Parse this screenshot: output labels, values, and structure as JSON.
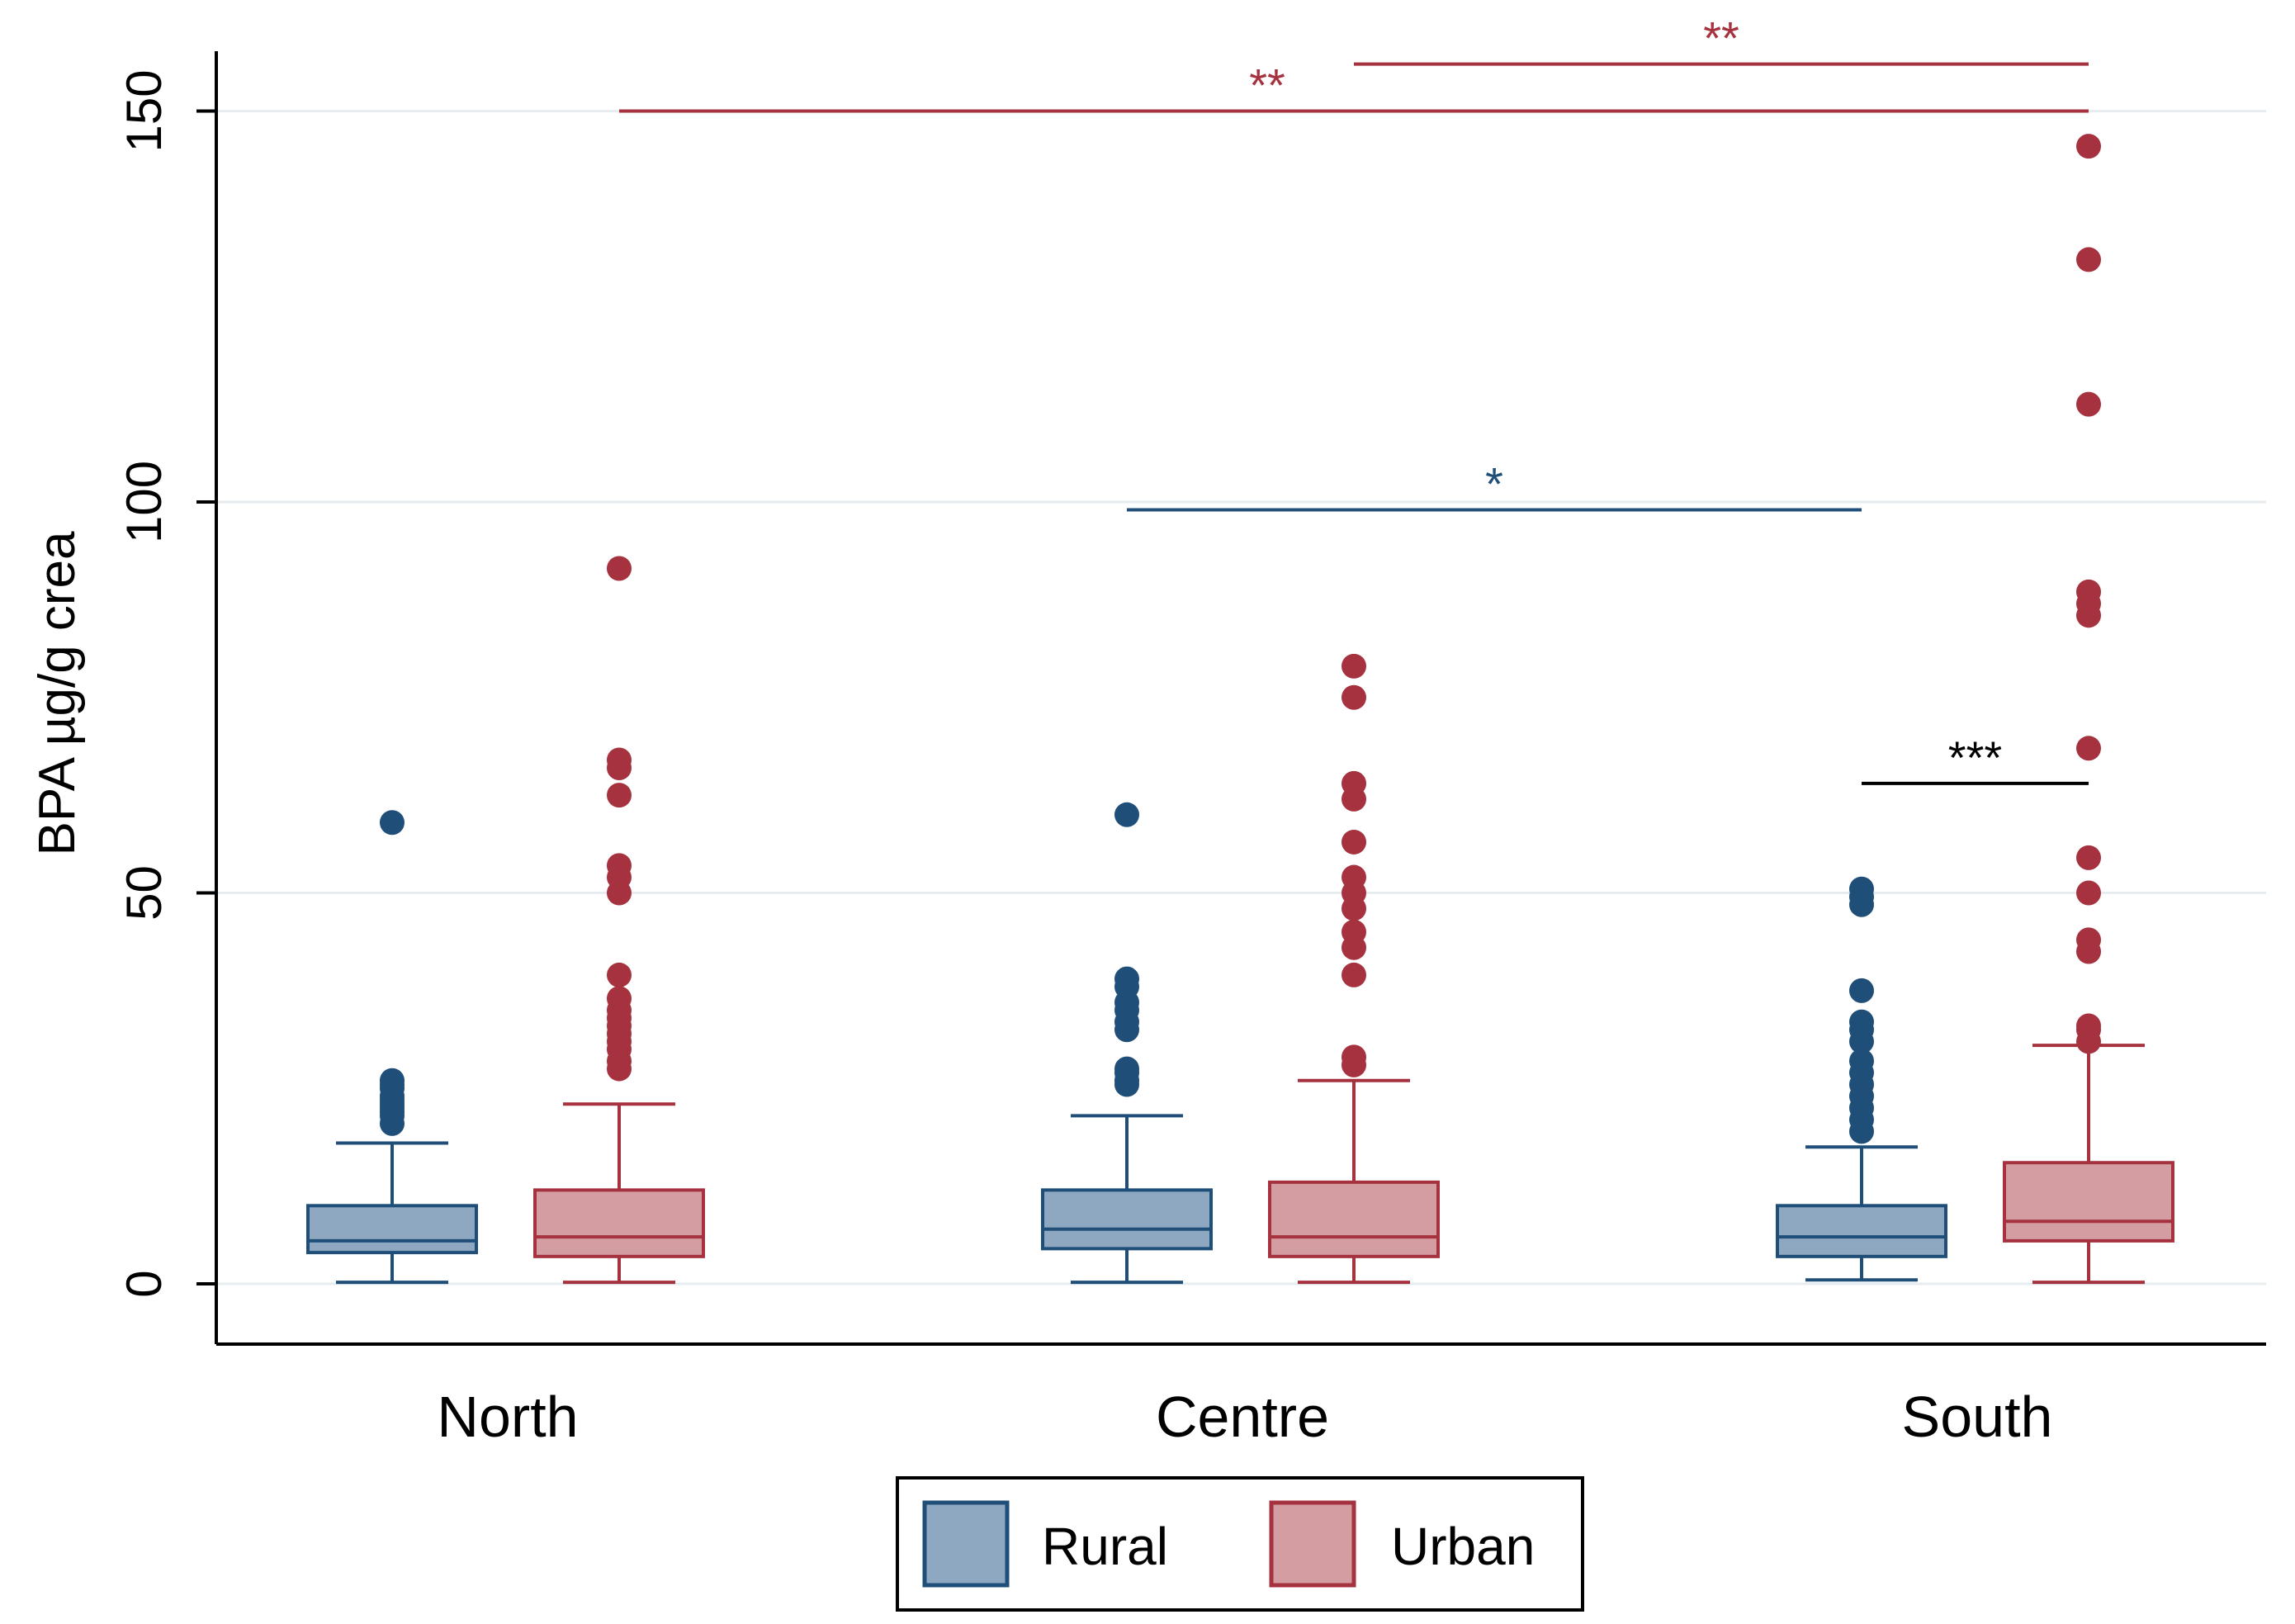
{
  "chart_data": {
    "type": "box",
    "title": "",
    "xlabel": "",
    "ylabel": "BPA  µg/g crea",
    "ylim": [
      -12,
      158
    ],
    "yticks": [
      0,
      50,
      100,
      150
    ],
    "ytick_labels": [
      "0",
      "50",
      "100",
      "150"
    ],
    "grid": true,
    "categories": [
      "North",
      "Centre",
      "South"
    ],
    "series": [
      {
        "name": "Rural",
        "color": "#1f4e79",
        "fill": "#8fa8c2",
        "boxes": [
          {
            "category": "North",
            "whisker_low": 0.2,
            "q1": 4.0,
            "median": 5.5,
            "q3": 10.0,
            "whisker_high": 18.0,
            "outliers": [
              20.5,
              21.5,
              22.0,
              22.5,
              23.0,
              23.5,
              24.0,
              25.0,
              25.5,
              26.0,
              59.0
            ]
          },
          {
            "category": "Centre",
            "whisker_low": 0.2,
            "q1": 4.5,
            "median": 7.0,
            "q3": 12.0,
            "whisker_high": 21.5,
            "outliers": [
              25.5,
              26.0,
              27.0,
              27.5,
              32.5,
              33.5,
              35.0,
              36.0,
              38.0,
              39.0,
              60.0
            ]
          },
          {
            "category": "South",
            "whisker_low": 0.5,
            "q1": 3.5,
            "median": 6.0,
            "q3": 10.0,
            "whisker_high": 17.5,
            "outliers": [
              19.5,
              21.0,
              22.5,
              24.0,
              25.5,
              27.0,
              28.5,
              31.0,
              32.5,
              33.5,
              37.5,
              48.5,
              49.5,
              50.5
            ]
          }
        ]
      },
      {
        "name": "Urban",
        "color": "#a5323e",
        "fill": "#d39da2",
        "boxes": [
          {
            "category": "North",
            "whisker_low": 0.2,
            "q1": 3.5,
            "median": 6.0,
            "q3": 12.0,
            "whisker_high": 23.0,
            "outliers": [
              27.5,
              28.5,
              30.0,
              31.0,
              32.0,
              33.0,
              34.0,
              35.0,
              36.5,
              39.5,
              50.0,
              52.0,
              53.5,
              62.5,
              66.0,
              67.0,
              91.5
            ]
          },
          {
            "category": "Centre",
            "whisker_low": 0.2,
            "q1": 3.5,
            "median": 6.0,
            "q3": 13.0,
            "whisker_high": 26.0,
            "outliers": [
              28.0,
              29.0,
              39.5,
              43.0,
              45.0,
              48.0,
              50.0,
              52.0,
              56.5,
              62.0,
              64.0,
              75.0,
              79.0
            ]
          },
          {
            "category": "South",
            "whisker_low": 0.2,
            "q1": 5.5,
            "median": 8.0,
            "q3": 15.5,
            "whisker_high": 30.5,
            "outliers": [
              31.0,
              32.5,
              33.0,
              42.5,
              44.0,
              50.0,
              54.5,
              68.5,
              85.5,
              87.0,
              88.5,
              112.5,
              131.0,
              145.5
            ]
          }
        ]
      }
    ],
    "annotations": [
      {
        "label": "**",
        "from": "North-Urban",
        "to": "South-Urban",
        "y": 150,
        "color": "#a5323e"
      },
      {
        "label": "**",
        "from": "Centre-Urban",
        "to": "South-Urban",
        "y": 156,
        "color": "#a5323e"
      },
      {
        "label": "*",
        "from": "Centre-Rural",
        "to": "South-Rural",
        "y": 99,
        "color": "#1f4e79"
      },
      {
        "label": "***",
        "from": "South-Rural",
        "to": "South-Urban",
        "y": 64,
        "color": "#000000"
      }
    ],
    "legend": {
      "position": "bottom-center",
      "entries": [
        "Rural",
        "Urban"
      ]
    }
  }
}
